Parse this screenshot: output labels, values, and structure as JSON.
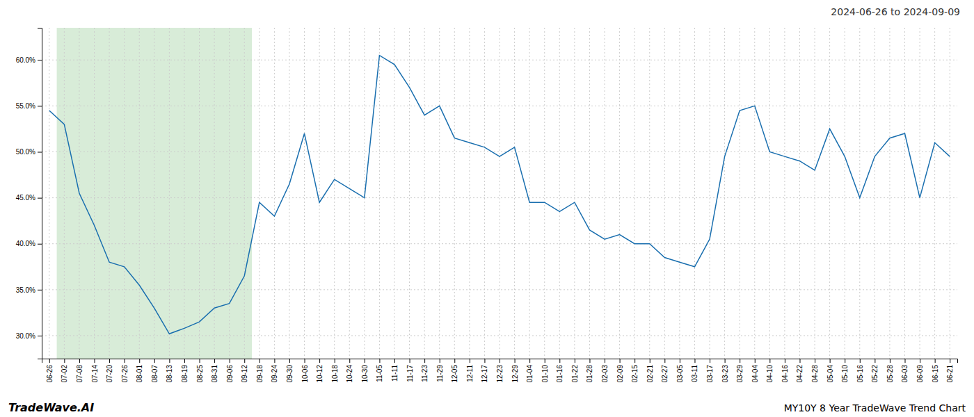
{
  "chart_data": {
    "type": "line",
    "title": "2024-06-26 to 2024-09-09",
    "annotations": [
      "TradeWave.AI",
      "MY10Y 8 Year TradeWave Trend Chart"
    ],
    "categories": [
      "06-26",
      "07-02",
      "07-08",
      "07-14",
      "07-20",
      "07-26",
      "08-01",
      "08-07",
      "08-13",
      "08-19",
      "08-25",
      "08-31",
      "09-06",
      "09-12",
      "09-18",
      "09-24",
      "09-30",
      "10-06",
      "10-12",
      "10-18",
      "10-24",
      "10-30",
      "11-05",
      "11-11",
      "11-17",
      "11-23",
      "11-29",
      "12-05",
      "12-11",
      "12-17",
      "12-23",
      "12-29",
      "01-04",
      "01-10",
      "01-16",
      "01-22",
      "01-28",
      "02-03",
      "02-09",
      "02-15",
      "02-21",
      "02-27",
      "03-05",
      "03-11",
      "03-17",
      "03-23",
      "03-29",
      "04-04",
      "04-10",
      "04-16",
      "04-22",
      "04-28",
      "05-04",
      "05-10",
      "05-16",
      "05-22",
      "05-28",
      "06-03",
      "06-09",
      "06-15",
      "06-21"
    ],
    "values": [
      54.5,
      53.0,
      45.5,
      42.0,
      38.0,
      37.5,
      35.5,
      33.0,
      30.2,
      30.8,
      31.5,
      33.0,
      33.5,
      36.5,
      44.5,
      43.0,
      46.5,
      52.0,
      44.5,
      47.0,
      46.0,
      45.0,
      60.5,
      59.5,
      57.0,
      54.0,
      55.0,
      51.5,
      51.0,
      50.5,
      49.5,
      50.5,
      44.5,
      44.5,
      43.5,
      44.5,
      41.5,
      40.5,
      41.0,
      40.0,
      40.0,
      38.5,
      38.0,
      37.5,
      40.5,
      49.5,
      54.5,
      55.0,
      50.0,
      49.5,
      49.0,
      48.0,
      52.5,
      49.5,
      45.0,
      49.5,
      51.5,
      52.0,
      45.0,
      51.0,
      49.5
    ],
    "color": "#1a6faf",
    "shade": {
      "from": "07-02",
      "to": "09-12",
      "color": "#d8ecd8"
    },
    "ylim": [
      27.5,
      63.5
    ],
    "yticks": [
      {
        "value": 30.0,
        "label": "30.0%"
      },
      {
        "value": 35.0,
        "label": "35.0%"
      },
      {
        "value": 40.0,
        "label": "40.0%"
      },
      {
        "value": 45.0,
        "label": "45.0%"
      },
      {
        "value": 50.0,
        "label": "50.0%"
      },
      {
        "value": 55.0,
        "label": "55.0%"
      },
      {
        "value": 60.0,
        "label": "60.0%"
      }
    ],
    "grid": true
  }
}
